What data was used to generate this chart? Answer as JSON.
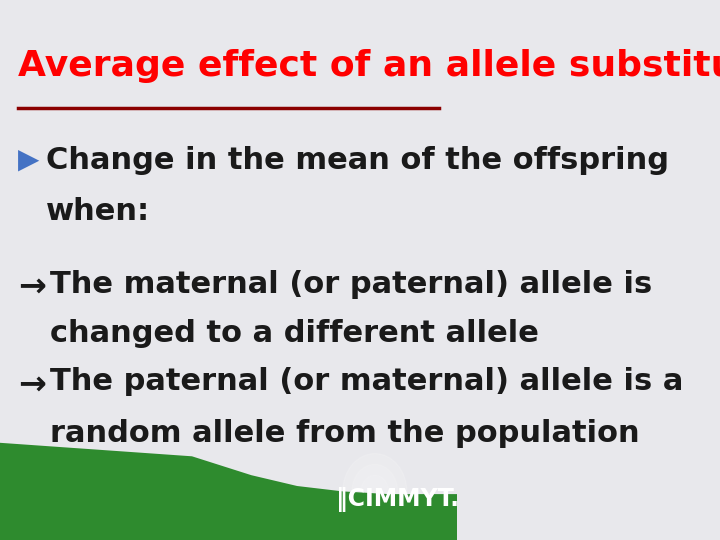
{
  "title": "Average effect of an allele substitution",
  "title_color": "#FF0000",
  "title_fontsize": 26,
  "title_bold": true,
  "divider_color": "#8B0000",
  "bg_color": "#E8E8EC",
  "bullet1_marker": "▶",
  "bullet1_marker_color": "#4472C4",
  "bullet1_text": "Change in the mean of the offspring\n    when:",
  "bullet1_fontsize": 22,
  "bullet1_bold": true,
  "arrow_color": "#1a1a1a",
  "arrow_fontsize": 22,
  "sub_bullet1_line1": "→ The maternal (or paternal) allele is",
  "sub_bullet1_line2": "    changed to a different allele",
  "sub_bullet2_line1": "→ The paternal (or maternal) allele is a",
  "sub_bullet2_line2": "    random allele from the population",
  "footer_green_color": "#2E8B2E",
  "footer_bg_color": "#2E8B2E",
  "cimmyt_text": "CIMMYT.",
  "cimmyt_color": "#FFFFFF",
  "cimmyt_fontsize": 18
}
